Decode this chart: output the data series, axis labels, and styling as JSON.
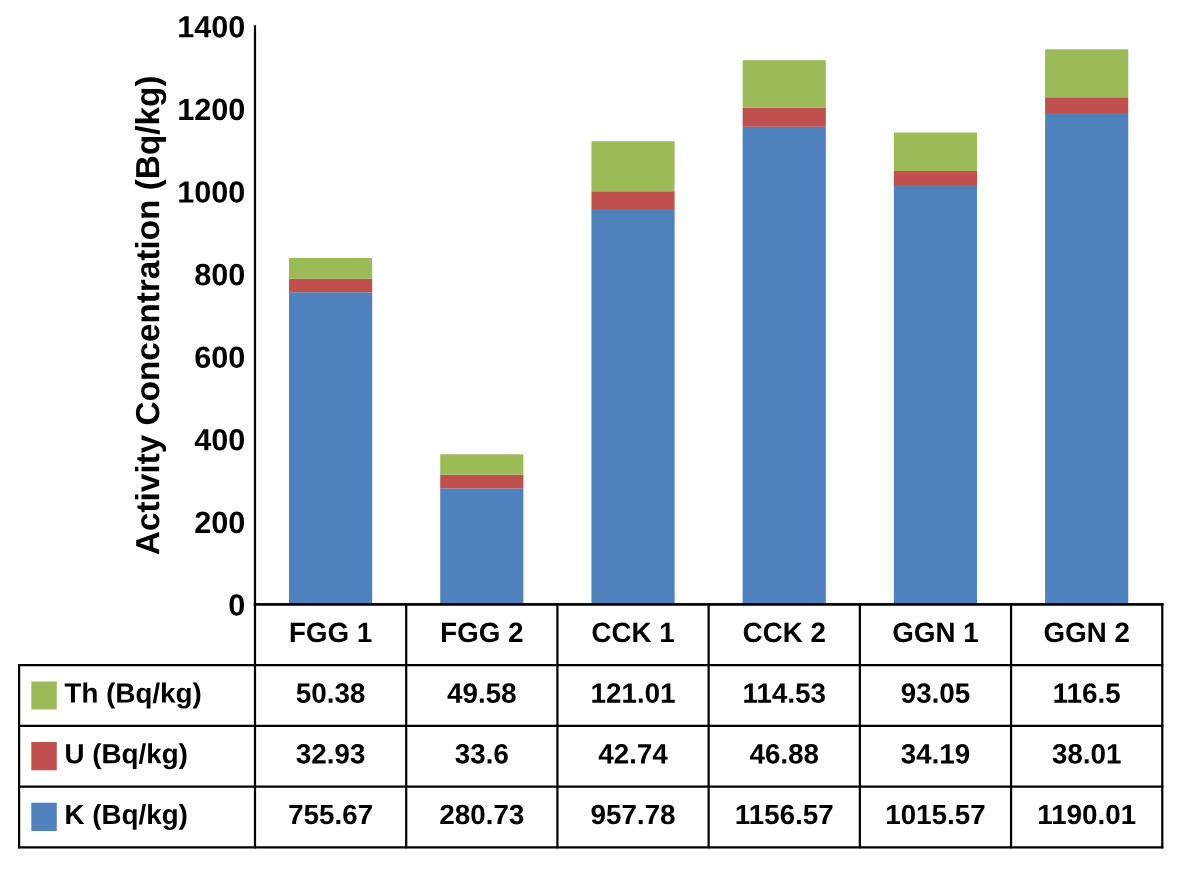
{
  "chart_data": {
    "type": "bar",
    "stacked": true,
    "ylabel": "Activity Concentration (Bq/kg)",
    "categories": [
      "FGG 1",
      "FGG 2",
      "CCK 1",
      "CCK 2",
      "GGN 1",
      "GGN 2"
    ],
    "series": [
      {
        "name": "K (Bq/kg)",
        "color": "#4f81bd",
        "values": [
          755.67,
          280.73,
          957.78,
          1156.57,
          1015.57,
          1190.01
        ]
      },
      {
        "name": "U (Bq/kg)",
        "color": "#c0504d",
        "values": [
          32.93,
          33.6,
          42.74,
          46.88,
          34.19,
          38.01
        ]
      },
      {
        "name": "Th (Bq/kg)",
        "color": "#9bbb59",
        "values": [
          50.38,
          49.58,
          121.01,
          114.53,
          93.05,
          116.5
        ]
      }
    ],
    "ylim": [
      0,
      1400
    ],
    "yticks": [
      0,
      200,
      400,
      600,
      800,
      1000,
      1200,
      1400
    ],
    "data_labels": true,
    "legend": "bottom"
  }
}
